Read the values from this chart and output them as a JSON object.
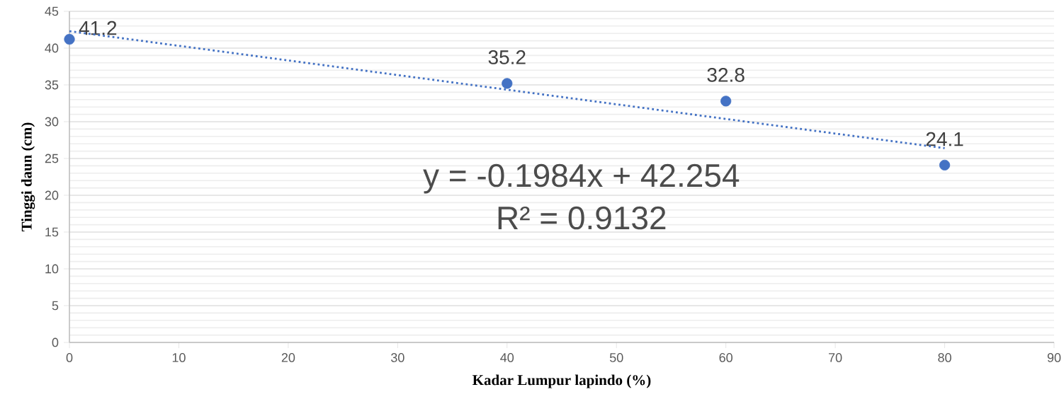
{
  "chart_data": {
    "type": "scatter",
    "xlabel": "Kadar Lumpur lapindo (%)",
    "ylabel": "Tinggi daun (cm)",
    "x": [
      0,
      40,
      60,
      80
    ],
    "series": [
      {
        "color": "#4472c4",
        "values": [
          41.2,
          35.2,
          32.8,
          24.1
        ],
        "value_labels": [
          "41.2",
          "35.2",
          "32.8",
          "24.1"
        ],
        "marker": "circle"
      },
      {
        "type": "line",
        "color": "#4472c4",
        "x": [
          0,
          80
        ],
        "values": [
          42.3,
          26.4
        ],
        "line_style": "dotted",
        "marker": "none"
      }
    ],
    "annotations": [
      "y = -0.1984x + 42.254",
      "R² = 0.9132"
    ],
    "xlim": [
      0,
      90
    ],
    "xticks": [
      0,
      10,
      20,
      30,
      40,
      50,
      60,
      70,
      80,
      90
    ],
    "ylim": [
      0,
      45
    ],
    "yticks": [
      0,
      5,
      10,
      15,
      20,
      25,
      30,
      35,
      40,
      45
    ],
    "grid": "y"
  }
}
